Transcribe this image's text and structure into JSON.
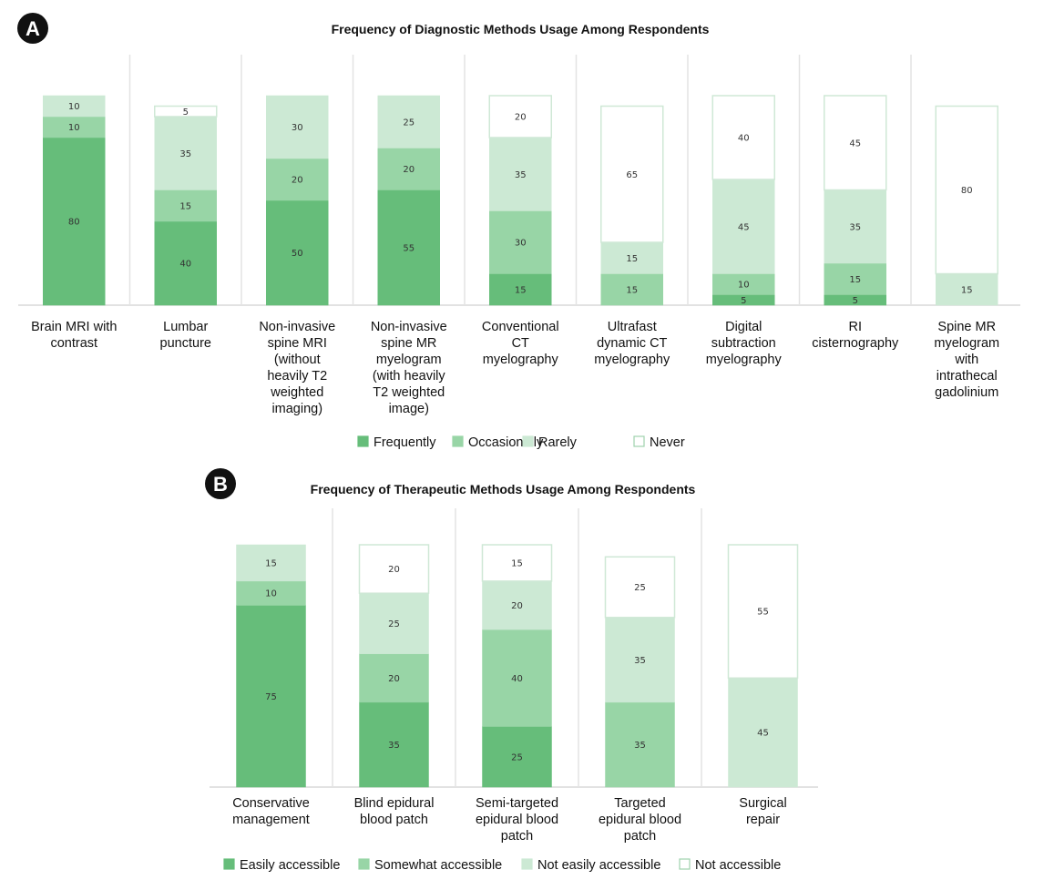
{
  "chart_data": [
    {
      "panel": "A",
      "type": "bar",
      "stacked": true,
      "title": "Frequency of Diagnostic Methods Usage Among Respondents",
      "xlabel": "",
      "ylabel": "",
      "ylim": [
        0,
        100
      ],
      "legend_position": "bottom",
      "categories": [
        [
          "Brain MRI with",
          "contrast"
        ],
        [
          "Lumbar",
          "puncture"
        ],
        [
          "Non-invasive",
          "spine MRI",
          "(without",
          "heavily T2",
          "weighted",
          "imaging)"
        ],
        [
          "Non-invasive",
          "spine MR",
          "myelogram",
          "(with heavily",
          "T2 weighted",
          "image)"
        ],
        [
          "Conventional",
          "CT",
          "myelography"
        ],
        [
          "Ultrafast",
          "dynamic CT",
          "myelography"
        ],
        [
          "Digital",
          "subtraction",
          "myelography"
        ],
        [
          "RI",
          "cisternography"
        ],
        [
          "Spine MR",
          "myelogram",
          "with",
          "intrathecal",
          "gadolinium"
        ]
      ],
      "series": [
        {
          "name": "Frequently",
          "color": "#66bd7a",
          "values": [
            80,
            40,
            50,
            55,
            15,
            0,
            5,
            5,
            0
          ]
        },
        {
          "name": "Occasionally",
          "color": "#98d5a6",
          "values": [
            10,
            15,
            20,
            20,
            30,
            15,
            10,
            15,
            0
          ]
        },
        {
          "name": "Rarely",
          "color": "#cce9d4",
          "values": [
            10,
            35,
            30,
            25,
            35,
            15,
            45,
            35,
            15
          ]
        },
        {
          "name": "Never",
          "color": "#ffffff",
          "values": [
            0,
            5,
            0,
            0,
            20,
            65,
            40,
            45,
            80
          ]
        }
      ]
    },
    {
      "panel": "B",
      "type": "bar",
      "stacked": true,
      "title": "Frequency of Therapeutic Methods Usage Among Respondents",
      "xlabel": "",
      "ylabel": "",
      "ylim": [
        0,
        100
      ],
      "legend_position": "bottom",
      "categories": [
        [
          "Conservative",
          "management"
        ],
        [
          "Blind epidural",
          "blood patch"
        ],
        [
          "Semi-targeted",
          "epidural blood",
          "patch"
        ],
        [
          "Targeted",
          "epidural blood",
          "patch"
        ],
        [
          "Surgical",
          "repair"
        ]
      ],
      "series": [
        {
          "name": "Easily accessible",
          "color": "#66bd7a",
          "values": [
            75,
            35,
            25,
            0,
            0
          ]
        },
        {
          "name": "Somewhat accessible",
          "color": "#98d5a6",
          "values": [
            10,
            20,
            40,
            35,
            0
          ]
        },
        {
          "name": "Not easily accessible",
          "color": "#cce9d4",
          "values": [
            15,
            25,
            20,
            35,
            45
          ]
        },
        {
          "name": "Not accessible",
          "color": "#ffffff",
          "values": [
            0,
            20,
            15,
            25,
            55
          ]
        }
      ]
    }
  ]
}
